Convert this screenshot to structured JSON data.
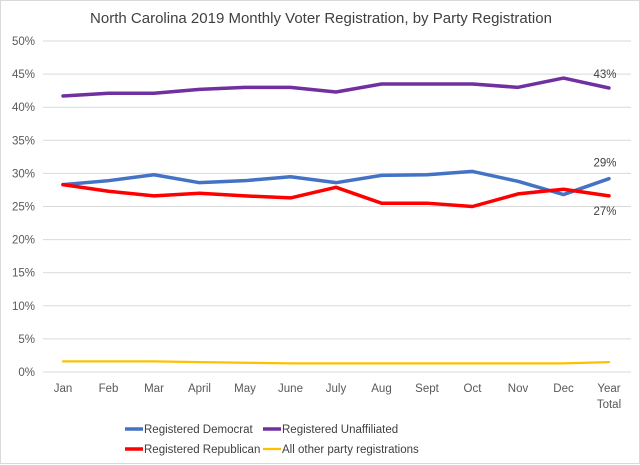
{
  "chart_data": {
    "type": "line",
    "title": "North Carolina 2019 Monthly Voter Registration, by Party Registration",
    "xlabel": "",
    "ylabel": "",
    "categories": [
      "Jan",
      "Feb",
      "Mar",
      "April",
      "May",
      "June",
      "July",
      "Aug",
      "Sept",
      "Oct",
      "Nov",
      "Dec",
      "Year Total"
    ],
    "y_ticks": [
      "0%",
      "5%",
      "10%",
      "15%",
      "20%",
      "25%",
      "30%",
      "35%",
      "40%",
      "45%",
      "50%"
    ],
    "ylim": [
      0,
      50
    ],
    "y_unit": "%",
    "grid": true,
    "legend_position": "bottom",
    "series": [
      {
        "name": "Registered Democrat",
        "color": "#4472c4",
        "values": [
          28.3,
          28.9,
          29.8,
          28.6,
          28.9,
          29.5,
          28.6,
          29.7,
          29.8,
          30.3,
          28.8,
          26.8,
          29.2
        ],
        "end_label": "29%"
      },
      {
        "name": "Registered Unaffiliated",
        "color": "#7030a0",
        "values": [
          41.7,
          42.1,
          42.1,
          42.7,
          43.0,
          43.0,
          42.3,
          43.5,
          43.5,
          43.5,
          43.0,
          44.4,
          42.9
        ],
        "end_label": "43%"
      },
      {
        "name": "Registered Republican",
        "color": "#ff0000",
        "values": [
          28.3,
          27.3,
          26.6,
          27.0,
          26.6,
          26.3,
          27.9,
          25.5,
          25.5,
          25.0,
          26.9,
          27.6,
          26.6
        ],
        "end_label": "27%"
      },
      {
        "name": "All other party registrations",
        "color": "#ffc000",
        "values": [
          1.6,
          1.6,
          1.6,
          1.5,
          1.4,
          1.3,
          1.3,
          1.3,
          1.3,
          1.3,
          1.3,
          1.3,
          1.5
        ],
        "end_label": ""
      }
    ]
  }
}
